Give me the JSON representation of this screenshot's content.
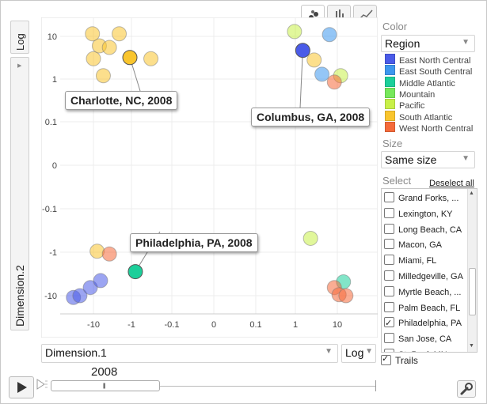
{
  "y_axis": {
    "log_label": "Log",
    "label": "Dimension.2"
  },
  "x_axis": {
    "select_value": "Dimension.1",
    "log_label": "Log"
  },
  "tabs": [
    {
      "name": "bubble-chart",
      "active": true
    },
    {
      "name": "bar-chart",
      "active": false
    },
    {
      "name": "line-chart",
      "active": false
    }
  ],
  "chart_data": {
    "type": "scatter",
    "xlabel": "Dimension.1",
    "ylabel": "Dimension.2",
    "x_scale": "symlog",
    "y_scale": "symlog",
    "x_ticks": [
      "-10",
      "-1",
      "-0.1",
      "0",
      "0.1",
      "1",
      "10"
    ],
    "y_ticks": [
      "10",
      "1",
      "0.1",
      "0",
      "-0.1",
      "-1",
      "-10"
    ],
    "grid": true,
    "legend": "right panel",
    "points": [
      {
        "x": -10,
        "y": 3,
        "region": "South Atlantic"
      },
      {
        "x": -7,
        "y": 6,
        "region": "South Atlantic"
      },
      {
        "x": -10.6,
        "y": 11.5,
        "region": "South Atlantic"
      },
      {
        "x": -2.1,
        "y": 11.5,
        "region": "South Atlantic"
      },
      {
        "x": -3.8,
        "y": 5.5,
        "region": "South Atlantic"
      },
      {
        "x": -5.5,
        "y": 1.2,
        "region": "South Atlantic"
      },
      {
        "x": -0.33,
        "y": 3,
        "region": "South Atlantic"
      },
      {
        "x": -1.1,
        "y": 3.2,
        "region": "South Atlantic",
        "selected": true,
        "label": "Charlotte, NC, 2008"
      },
      {
        "x": 0.95,
        "y": 13,
        "region": "Pacific"
      },
      {
        "x": 6.5,
        "y": 11,
        "region": "East South Central"
      },
      {
        "x": 1.5,
        "y": 4.7,
        "region": "East North Central",
        "selected": true,
        "label": "Columbus, GA, 2008"
      },
      {
        "x": 2.8,
        "y": 2.8,
        "region": "South Atlantic"
      },
      {
        "x": 4.3,
        "y": 1.3,
        "region": "East South Central"
      },
      {
        "x": 12,
        "y": 1.2,
        "region": "Pacific"
      },
      {
        "x": 8.5,
        "y": 0.85,
        "region": "West North Central"
      },
      {
        "x": -8,
        "y": -0.95,
        "region": "South Atlantic"
      },
      {
        "x": -3.8,
        "y": -1.1,
        "region": "West North Central"
      },
      {
        "x": 2.3,
        "y": -0.48,
        "region": "Pacific"
      },
      {
        "x": -0.8,
        "y": -2.8,
        "region": "Middle Atlantic",
        "selected": true,
        "label": "Philadelphia, PA, 2008"
      },
      {
        "x": -32,
        "y": -11,
        "region": "East North Central"
      },
      {
        "x": -22,
        "y": -10,
        "region": "East North Central"
      },
      {
        "x": -12,
        "y": -6.5,
        "region": "East North Central"
      },
      {
        "x": -6.5,
        "y": -4.5,
        "region": "East North Central"
      },
      {
        "x": 14,
        "y": -4.8,
        "region": "Middle Atlantic"
      },
      {
        "x": 8.5,
        "y": -6.5,
        "region": "West North Central"
      },
      {
        "x": 11,
        "y": -9.5,
        "region": "West North Central"
      },
      {
        "x": 16,
        "y": -10,
        "region": "West North Central"
      }
    ]
  },
  "color_panel": {
    "label": "Color",
    "value": "Region",
    "legend": [
      {
        "name": "East North Central",
        "color": "#4a5be8"
      },
      {
        "name": "East South Central",
        "color": "#3d97ee"
      },
      {
        "name": "Middle Atlantic",
        "color": "#1ccf9a"
      },
      {
        "name": "Mountain",
        "color": "#76e85b"
      },
      {
        "name": "Pacific",
        "color": "#c8f048"
      },
      {
        "name": "South Atlantic",
        "color": "#f9c52d"
      },
      {
        "name": "West North Central",
        "color": "#f56a3a"
      }
    ]
  },
  "size_panel": {
    "label": "Size",
    "value": "Same size"
  },
  "select_panel": {
    "label": "Select",
    "deselect_all": "Deselect all",
    "items": [
      {
        "label": "Grand Forks, ...",
        "checked": false
      },
      {
        "label": "Lexington, KY",
        "checked": false
      },
      {
        "label": "Long Beach, CA",
        "checked": false
      },
      {
        "label": "Macon, GA",
        "checked": false
      },
      {
        "label": "Miami, FL",
        "checked": false
      },
      {
        "label": "Milledgeville, GA",
        "checked": false
      },
      {
        "label": "Myrtle Beach, ...",
        "checked": false
      },
      {
        "label": "Palm Beach, FL",
        "checked": false
      },
      {
        "label": "Philadelphia, PA",
        "checked": true
      },
      {
        "label": "San Jose, CA",
        "checked": false
      },
      {
        "label": "St. Paul, MN",
        "checked": false
      }
    ]
  },
  "trails": {
    "label": "Trails",
    "checked": true
  },
  "timeline": {
    "year": "2008"
  }
}
